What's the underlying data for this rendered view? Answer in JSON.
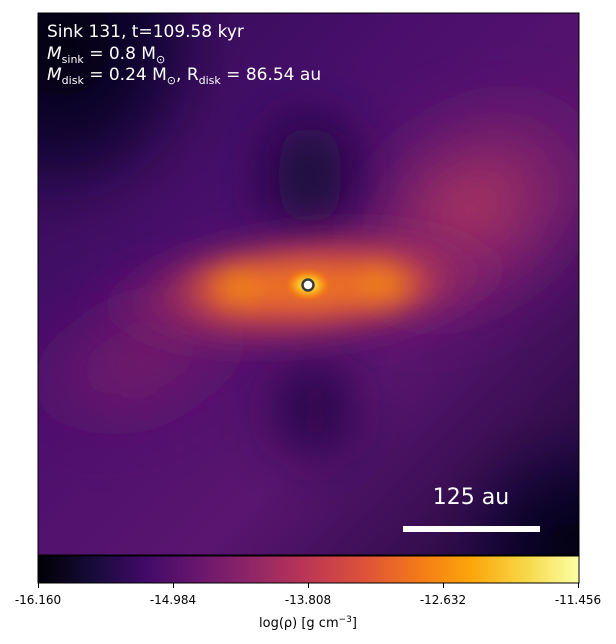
{
  "annotation": {
    "line1": "Sink 131, t=109.58 kyr",
    "line2_prefix": "M",
    "line2_sub": "sink",
    "line2_rest": " = 0.8 M",
    "line2_sun": "⊙",
    "line3_prefix": "M",
    "line3_sub": "disk",
    "line3_mid": " = 0.24 M",
    "line3_sun": "⊙",
    "line3_r": ", R",
    "line3_rsub": "disk",
    "line3_rest": " = 86.54 au"
  },
  "scalebar": {
    "label": "125 au"
  },
  "colorbar": {
    "ticks": [
      "-16.160",
      "-14.984",
      "-13.808",
      "-12.632",
      "-11.456"
    ],
    "label_prefix": "log(ρ) [g cm",
    "label_sup": "−3",
    "label_suffix": "]",
    "colormap": "inferno"
  },
  "colors": {
    "text_on_image": "#ffffff",
    "scalebar": "#ffffff",
    "sink_marker_fill": "#ffffff",
    "sink_marker_edge": "#3a3a3a"
  }
}
